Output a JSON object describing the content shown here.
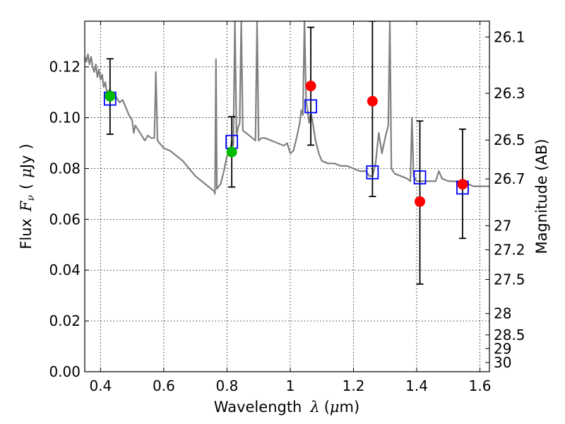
{
  "chart_data": {
    "type": "scatter",
    "title": "",
    "xlabel": "Wavelength",
    "xlabel_symbol": "λ",
    "xlabel_unit_open": "(",
    "xlabel_unit_mu": "μ",
    "xlabel_unit_rest": "m)",
    "ylabel_left": "Flux",
    "ylabel_left_symbol": "F",
    "ylabel_left_symbol_sub": "ν",
    "ylabel_left_unit_open": "(",
    "ylabel_left_unit_mu": "μ",
    "ylabel_left_unit_rest": "Jy",
    "ylabel_left_unit_close": ")",
    "ylabel_right": "Magnitude (AB)",
    "xlim": [
      0.35,
      1.63
    ],
    "ylim": [
      0.0,
      0.138
    ],
    "grid": true,
    "x_ticks": [
      {
        "value": 0.4,
        "label": "0.4"
      },
      {
        "value": 0.6,
        "label": "0.6"
      },
      {
        "value": 0.8,
        "label": "0.8"
      },
      {
        "value": 1.0,
        "label": "1"
      },
      {
        "value": 1.2,
        "label": "1.2"
      },
      {
        "value": 1.4,
        "label": "1.4"
      },
      {
        "value": 1.6,
        "label": "1.6"
      }
    ],
    "y_ticks": [
      {
        "value": 0.0,
        "label": "0.00"
      },
      {
        "value": 0.02,
        "label": "0.02"
      },
      {
        "value": 0.04,
        "label": "0.04"
      },
      {
        "value": 0.06,
        "label": "0.06"
      },
      {
        "value": 0.08,
        "label": "0.08"
      },
      {
        "value": 0.1,
        "label": "0.10"
      },
      {
        "value": 0.12,
        "label": "0.12"
      }
    ],
    "right_ticks": [
      {
        "flux": 0.1318,
        "label": "26.1"
      },
      {
        "flux": 0.1096,
        "label": "26.3"
      },
      {
        "flux": 0.0912,
        "label": "26.5"
      },
      {
        "flux": 0.0759,
        "label": "26.7"
      },
      {
        "flux": 0.0575,
        "label": "27"
      },
      {
        "flux": 0.048,
        "label": "27.2"
      },
      {
        "flux": 0.0363,
        "label": "27.5"
      },
      {
        "flux": 0.0229,
        "label": "28"
      },
      {
        "flux": 0.0145,
        "label": "28.5"
      },
      {
        "flux": 0.0091,
        "label": "29"
      },
      {
        "flux": 0.0036,
        "label": "30"
      }
    ],
    "series": [
      {
        "kind": "line",
        "color": "#808080",
        "points": [
          [
            0.35,
            0.124
          ],
          [
            0.355,
            0.122
          ],
          [
            0.36,
            0.125
          ],
          [
            0.365,
            0.121
          ],
          [
            0.37,
            0.124
          ],
          [
            0.375,
            0.12
          ],
          [
            0.38,
            0.118
          ],
          [
            0.385,
            0.121
          ],
          [
            0.39,
            0.116
          ],
          [
            0.395,
            0.119
          ],
          [
            0.4,
            0.115
          ],
          [
            0.405,
            0.117
          ],
          [
            0.41,
            0.112
          ],
          [
            0.415,
            0.114
          ],
          [
            0.42,
            0.11
          ],
          [
            0.43,
            0.111
          ],
          [
            0.44,
            0.109
          ],
          [
            0.45,
            0.108
          ],
          [
            0.46,
            0.106
          ],
          [
            0.47,
            0.107
          ],
          [
            0.48,
            0.104
          ],
          [
            0.49,
            0.101
          ],
          [
            0.5,
            0.099
          ],
          [
            0.505,
            0.094
          ],
          [
            0.51,
            0.097
          ],
          [
            0.52,
            0.095
          ],
          [
            0.53,
            0.093
          ],
          [
            0.54,
            0.091
          ],
          [
            0.55,
            0.093
          ],
          [
            0.56,
            0.092
          ],
          [
            0.57,
            0.092
          ],
          [
            0.575,
            0.118
          ],
          [
            0.58,
            0.091
          ],
          [
            0.6,
            0.088
          ],
          [
            0.62,
            0.087
          ],
          [
            0.64,
            0.085
          ],
          [
            0.66,
            0.083
          ],
          [
            0.68,
            0.08
          ],
          [
            0.7,
            0.077
          ],
          [
            0.72,
            0.075
          ],
          [
            0.74,
            0.073
          ],
          [
            0.76,
            0.071
          ],
          [
            0.762,
            0.07
          ],
          [
            0.765,
            0.123
          ],
          [
            0.768,
            0.072
          ],
          [
            0.78,
            0.074
          ],
          [
            0.79,
            0.079
          ],
          [
            0.8,
            0.085
          ],
          [
            0.81,
            0.087
          ],
          [
            0.815,
            0.091
          ],
          [
            0.82,
            0.089
          ],
          [
            0.825,
            0.138
          ],
          [
            0.83,
            0.093
          ],
          [
            0.835,
            0.096
          ],
          [
            0.84,
            0.098
          ],
          [
            0.845,
            0.138
          ],
          [
            0.85,
            0.095
          ],
          [
            0.86,
            0.094
          ],
          [
            0.87,
            0.093
          ],
          [
            0.88,
            0.092
          ],
          [
            0.89,
            0.091
          ],
          [
            0.895,
            0.138
          ],
          [
            0.9,
            0.091
          ],
          [
            0.91,
            0.092
          ],
          [
            0.92,
            0.092
          ],
          [
            0.94,
            0.091
          ],
          [
            0.96,
            0.09
          ],
          [
            0.98,
            0.089
          ],
          [
            0.99,
            0.09
          ],
          [
            1.0,
            0.086
          ],
          [
            1.01,
            0.087
          ],
          [
            1.02,
            0.092
          ],
          [
            1.025,
            0.095
          ],
          [
            1.03,
            0.098
          ],
          [
            1.035,
            0.103
          ],
          [
            1.04,
            0.101
          ],
          [
            1.045,
            0.138
          ],
          [
            1.05,
            0.107
          ],
          [
            1.06,
            0.098
          ],
          [
            1.065,
            0.102
          ],
          [
            1.07,
            0.099
          ],
          [
            1.08,
            0.091
          ],
          [
            1.09,
            0.086
          ],
          [
            1.1,
            0.083
          ],
          [
            1.12,
            0.082
          ],
          [
            1.14,
            0.082
          ],
          [
            1.16,
            0.081
          ],
          [
            1.18,
            0.081
          ],
          [
            1.2,
            0.08
          ],
          [
            1.22,
            0.079
          ],
          [
            1.24,
            0.079
          ],
          [
            1.25,
            0.077
          ],
          [
            1.26,
            0.077
          ],
          [
            1.27,
            0.082
          ],
          [
            1.28,
            0.094
          ],
          [
            1.29,
            0.086
          ],
          [
            1.3,
            0.092
          ],
          [
            1.31,
            0.097
          ],
          [
            1.315,
            0.138
          ],
          [
            1.32,
            0.08
          ],
          [
            1.33,
            0.078
          ],
          [
            1.35,
            0.077
          ],
          [
            1.37,
            0.076
          ],
          [
            1.38,
            0.075
          ],
          [
            1.385,
            0.1
          ],
          [
            1.39,
            0.077
          ],
          [
            1.4,
            0.075
          ],
          [
            1.42,
            0.075
          ],
          [
            1.44,
            0.075
          ],
          [
            1.46,
            0.075
          ],
          [
            1.47,
            0.079
          ],
          [
            1.48,
            0.076
          ],
          [
            1.5,
            0.075
          ],
          [
            1.52,
            0.075
          ],
          [
            1.54,
            0.074
          ],
          [
            1.56,
            0.074
          ],
          [
            1.58,
            0.073
          ],
          [
            1.6,
            0.073
          ],
          [
            1.63,
            0.073
          ]
        ]
      },
      {
        "kind": "errorbar",
        "color": "#000000",
        "points": [
          {
            "x": 0.43,
            "low": 0.0935,
            "high": 0.1232
          },
          {
            "x": 0.815,
            "low": 0.0727,
            "high": 0.1004
          },
          {
            "x": 1.065,
            "low": 0.0892,
            "high": 0.1356
          },
          {
            "x": 1.26,
            "low": 0.069,
            "high": 0.138
          },
          {
            "x": 1.41,
            "low": 0.0345,
            "high": 0.0987
          },
          {
            "x": 1.545,
            "low": 0.0525,
            "high": 0.0955
          }
        ]
      },
      {
        "kind": "open-square",
        "color": "#0000ff",
        "points": [
          [
            0.43,
            0.1075
          ],
          [
            0.815,
            0.0905
          ],
          [
            1.065,
            0.1045
          ],
          [
            1.26,
            0.0785
          ],
          [
            1.41,
            0.0765
          ],
          [
            1.545,
            0.0725
          ]
        ]
      },
      {
        "kind": "circle",
        "color": "#ff0000",
        "points": [
          [
            1.065,
            0.1125
          ],
          [
            1.26,
            0.1065
          ],
          [
            1.41,
            0.067
          ],
          [
            1.545,
            0.0738
          ]
        ]
      },
      {
        "kind": "circle",
        "color": "#00bb00",
        "points": [
          [
            0.43,
            0.1085
          ],
          [
            0.815,
            0.0865
          ]
        ]
      }
    ]
  }
}
